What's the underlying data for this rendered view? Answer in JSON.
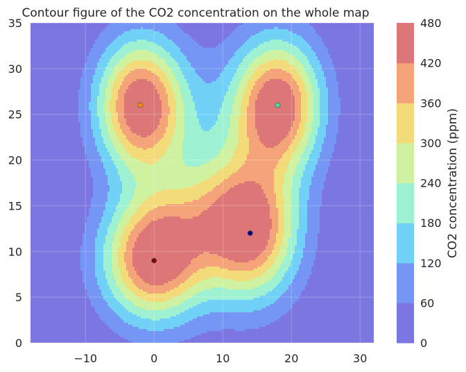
{
  "chart_data": {
    "type": "contour",
    "title": "Contour figure of the CO2 concentration on the whole map",
    "xlabel": "",
    "ylabel": "",
    "xlim": [
      -18,
      32
    ],
    "ylim": [
      0,
      35
    ],
    "x_ticks": [
      -10,
      0,
      10,
      20,
      30
    ],
    "x_tick_labels": [
      "−10",
      "0",
      "10",
      "20",
      "30"
    ],
    "y_ticks": [
      0,
      5,
      10,
      15,
      20,
      25,
      30,
      35
    ],
    "y_tick_labels": [
      "0",
      "5",
      "10",
      "15",
      "20",
      "25",
      "30",
      "35"
    ],
    "grid": true,
    "colorbar": {
      "label": "CO2 concentration (ppm)",
      "levels": [
        0,
        60,
        120,
        180,
        240,
        300,
        360,
        420,
        480
      ],
      "tick_labels": [
        "0",
        "60",
        "120",
        "180",
        "240",
        "300",
        "360",
        "420",
        "480"
      ],
      "colors": [
        "#7b76e0",
        "#7596f4",
        "#71d1f6",
        "#9ef2d1",
        "#cff2a0",
        "#f4db7a",
        "#f4a478",
        "#dd7777"
      ]
    },
    "sources": [
      {
        "x": 0,
        "y": 9,
        "color": "#8b0000"
      },
      {
        "x": 14,
        "y": 12,
        "color": "#000080"
      },
      {
        "x": -2,
        "y": 26,
        "color": "#ff8c00"
      },
      {
        "x": 18,
        "y": 26,
        "color": "#40e0a0"
      }
    ]
  }
}
